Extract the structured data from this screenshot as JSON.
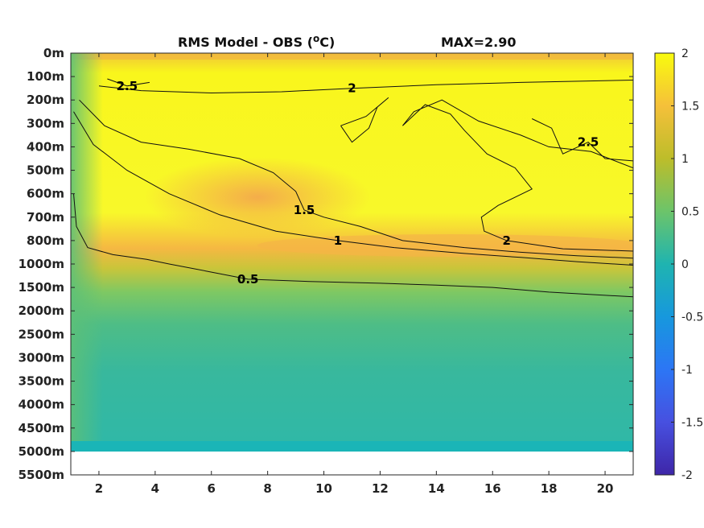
{
  "chart_data": {
    "type": "heatmap",
    "title": "RMS Model - OBS (",
    "title_unit_sup": "o",
    "title_unit": "C)",
    "max_label": "MAX=2.90",
    "xlabel": "",
    "ylabel": "",
    "x_range": [
      1,
      21
    ],
    "x_ticks": [
      "2",
      "4",
      "6",
      "8",
      "10",
      "12",
      "14",
      "16",
      "18",
      "20"
    ],
    "x_tick_values": [
      2,
      4,
      6,
      8,
      10,
      12,
      14,
      16,
      18,
      20
    ],
    "y_tick_labels": [
      "0m",
      "100m",
      "200m",
      "300m",
      "400m",
      "500m",
      "600m",
      "700m",
      "800m",
      "1000m",
      "1500m",
      "2000m",
      "2500m",
      "3000m",
      "3500m",
      "4000m",
      "4500m",
      "5000m",
      "5500m"
    ],
    "y_scale": "non-linear (equal spacing per listed depth)",
    "data_bottom_depth": "5000m",
    "colorbar": {
      "range": [
        -2,
        2
      ],
      "ticks": [
        "2",
        "1.5",
        "1",
        "0.5",
        "0",
        "-0.5",
        "-1",
        "-1.5",
        "-2"
      ],
      "colormap": "parula"
    },
    "contours": [
      {
        "level": 0.5,
        "label": "0.5",
        "points": [
          [
            1.1,
            6.0
          ],
          [
            1.2,
            7.4
          ],
          [
            1.6,
            8.3
          ],
          [
            2.5,
            8.6
          ],
          [
            3.7,
            8.8
          ],
          [
            4.5,
            9.0
          ],
          [
            5.8,
            9.3
          ],
          [
            7.3,
            9.65
          ],
          [
            9.5,
            9.75
          ],
          [
            12,
            9.82
          ],
          [
            14,
            9.9
          ],
          [
            16,
            10.0
          ],
          [
            18,
            10.2
          ],
          [
            21,
            10.4
          ]
        ]
      },
      {
        "level": 1.0,
        "label": "1",
        "points": [
          [
            1.1,
            2.5
          ],
          [
            1.8,
            3.9
          ],
          [
            3.0,
            5.0
          ],
          [
            4.5,
            6.0
          ],
          [
            6.3,
            6.9
          ],
          [
            8.3,
            7.6
          ],
          [
            10.5,
            8.0
          ],
          [
            12.5,
            8.3
          ],
          [
            15,
            8.55
          ],
          [
            17,
            8.72
          ],
          [
            19,
            8.9
          ],
          [
            21,
            9.05
          ]
        ]
      },
      {
        "level": 1.5,
        "label": "1.5",
        "points": [
          [
            1.3,
            2.0
          ],
          [
            2.2,
            3.1
          ],
          [
            3.5,
            3.8
          ],
          [
            5.2,
            4.1
          ],
          [
            7.0,
            4.5
          ],
          [
            8.2,
            5.1
          ],
          [
            9.0,
            5.9
          ],
          [
            9.3,
            6.7
          ],
          [
            10.0,
            7.0
          ],
          [
            11.3,
            7.4
          ],
          [
            12.8,
            8.0
          ],
          [
            15,
            8.3
          ],
          [
            17,
            8.5
          ],
          [
            19,
            8.65
          ],
          [
            21,
            8.75
          ]
        ]
      },
      {
        "level": 2.0,
        "label": "2",
        "points": [
          [
            2.0,
            1.4
          ],
          [
            3.5,
            1.6
          ],
          [
            6.0,
            1.7
          ],
          [
            8.5,
            1.65
          ],
          [
            11.0,
            1.5
          ],
          [
            14.0,
            1.35
          ],
          [
            17.0,
            1.25
          ],
          [
            21,
            1.15
          ]
        ]
      },
      {
        "level": 2.0,
        "label": "2",
        "points": [
          [
            12.8,
            3.1
          ],
          [
            13.6,
            2.2
          ],
          [
            14.5,
            2.6
          ],
          [
            15.0,
            3.3
          ],
          [
            15.8,
            4.3
          ],
          [
            16.8,
            4.9
          ],
          [
            17.4,
            5.8
          ],
          [
            16.2,
            6.5
          ],
          [
            15.6,
            7.0
          ],
          [
            15.7,
            7.6
          ],
          [
            16.5,
            8.0
          ],
          [
            18.5,
            8.35
          ],
          [
            21,
            8.45
          ],
          [
            21,
            4.9
          ],
          [
            19.5,
            4.2
          ],
          [
            18.0,
            4.0
          ],
          [
            17.0,
            3.5
          ],
          [
            15.5,
            2.9
          ],
          [
            14.2,
            2.0
          ],
          [
            13.2,
            2.5
          ],
          [
            12.8,
            3.1
          ]
        ]
      },
      {
        "level": 2.0,
        "label": "",
        "points": [
          [
            10.6,
            3.1
          ],
          [
            11.0,
            3.8
          ],
          [
            11.6,
            3.2
          ],
          [
            11.9,
            2.3
          ],
          [
            12.3,
            1.9
          ],
          [
            11.5,
            2.7
          ],
          [
            10.6,
            3.1
          ]
        ]
      },
      {
        "level": 2.5,
        "label": "2.5",
        "points": [
          [
            2.3,
            1.1
          ],
          [
            3.0,
            1.4
          ],
          [
            3.8,
            1.25
          ]
        ]
      },
      {
        "level": 2.5,
        "label": "2.5",
        "points": [
          [
            17.4,
            2.8
          ],
          [
            18.1,
            3.2
          ],
          [
            18.5,
            4.3
          ],
          [
            19.4,
            3.8
          ],
          [
            20.0,
            4.5
          ],
          [
            21,
            4.6
          ]
        ]
      }
    ]
  }
}
